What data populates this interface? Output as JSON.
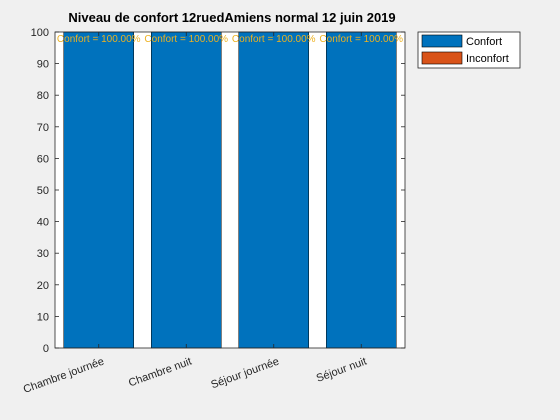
{
  "chart_data": {
    "type": "bar",
    "title": "Niveau de confort 12ruedAmiens normal 12 juin 2019",
    "categories": [
      "Chambre journée",
      "Chambre nuit",
      "Séjour journée",
      "Séjour nuit"
    ],
    "series": [
      {
        "name": "Confort",
        "values": [
          100,
          100,
          100,
          100
        ],
        "color": "#0072BD"
      },
      {
        "name": "Inconfort",
        "values": [
          0,
          0,
          0,
          0
        ],
        "color": "#D95319"
      }
    ],
    "data_labels": [
      "Confort = 100.00%",
      "Confort = 100.00%",
      "Confort = 100.00%",
      "Confort = 100.00%"
    ],
    "data_label_color": "#EDB120",
    "ylim": [
      0,
      100
    ],
    "yticks": [
      "0",
      "10",
      "20",
      "30",
      "40",
      "50",
      "60",
      "70",
      "80",
      "90",
      "100"
    ],
    "legend_position": "outside-top-right",
    "grid": false
  }
}
